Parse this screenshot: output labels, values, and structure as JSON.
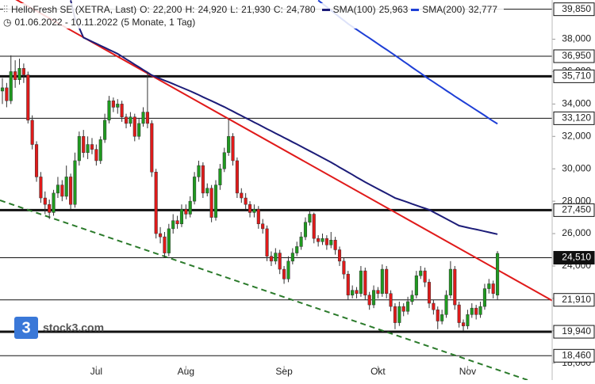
{
  "chart_data": {
    "type": "candlestick",
    "title": "HelloFresh SE (XETRA, Last)",
    "quote": [
      {
        "key": "O:",
        "value": "22,200"
      },
      {
        "key": "H:",
        "value": "24,920"
      },
      {
        "key": "L:",
        "value": "21,930"
      },
      {
        "key": "C:",
        "value": "24,780"
      }
    ],
    "period": "01.06.2022 - 10.11.2022",
    "span": "(5 Monate, 1 Tag)",
    "watermark": {
      "logo": "3",
      "text": "stock3.com"
    },
    "up_color": "#1f9a1f",
    "down_color": "#e01a1a",
    "ylim": [
      16960,
      40420
    ],
    "yticks": [
      {
        "value": 18000,
        "label": "18,000"
      },
      {
        "value": 20000,
        "label": "20,000"
      },
      {
        "value": 22000,
        "label": "22,000"
      },
      {
        "value": 24000,
        "label": "24,000"
      },
      {
        "value": 26000,
        "label": "26,000"
      },
      {
        "value": 28000,
        "label": "28,000"
      },
      {
        "value": 30000,
        "label": "30,000"
      },
      {
        "value": 32000,
        "label": "32,000"
      },
      {
        "value": 34000,
        "label": "34,000"
      },
      {
        "value": 36000,
        "label": "36,000"
      },
      {
        "value": 38000,
        "label": "38,000"
      }
    ],
    "levels": [
      {
        "value": 39850,
        "label": "39,850",
        "thick": false
      },
      {
        "value": 36950,
        "label": "36,950",
        "thick": false
      },
      {
        "value": 35710,
        "label": "35,710",
        "thick": true
      },
      {
        "value": 33120,
        "label": "33,120",
        "thick": false
      },
      {
        "value": 27450,
        "label": "27,450",
        "thick": true
      },
      {
        "value": 24510,
        "label": "24,510",
        "thick": false,
        "highlight": true
      },
      {
        "value": 21910,
        "label": "21,910",
        "thick": false
      },
      {
        "value": 19940,
        "label": "19,940",
        "thick": true
      },
      {
        "value": 18460,
        "label": "18,460",
        "thick": false
      }
    ],
    "categories": [
      null,
      null,
      null,
      null,
      null,
      null,
      null,
      null,
      null,
      null,
      null,
      null,
      null,
      null,
      null,
      null,
      null,
      null,
      null,
      null,
      null,
      null,
      "Jul",
      null,
      null,
      null,
      null,
      null,
      null,
      null,
      null,
      null,
      null,
      null,
      null,
      null,
      null,
      null,
      null,
      null,
      null,
      null,
      null,
      "Aug",
      null,
      null,
      null,
      null,
      null,
      null,
      null,
      null,
      null,
      null,
      null,
      null,
      null,
      null,
      null,
      null,
      null,
      null,
      null,
      null,
      null,
      null,
      "Sep",
      null,
      null,
      null,
      null,
      null,
      null,
      null,
      null,
      null,
      null,
      null,
      null,
      null,
      null,
      null,
      null,
      null,
      null,
      null,
      null,
      null,
      "Okt",
      null,
      null,
      null,
      null,
      null,
      null,
      null,
      null,
      null,
      null,
      null,
      null,
      null,
      null,
      null,
      null,
      null,
      null,
      null,
      null,
      "Nov",
      null,
      null,
      null,
      null,
      null,
      null,
      null
    ],
    "ohlc": [
      [
        34800,
        35600,
        34000,
        35000
      ],
      [
        35000,
        35300,
        33800,
        34200
      ],
      [
        34200,
        37000,
        34000,
        36000
      ],
      [
        36000,
        36700,
        35000,
        35500
      ],
      [
        35500,
        36800,
        35200,
        36200
      ],
      [
        36200,
        36500,
        35300,
        35800
      ],
      [
        35800,
        36000,
        32800,
        33000
      ],
      [
        33000,
        33300,
        31200,
        31500
      ],
      [
        31500,
        31700,
        29200,
        29500
      ],
      [
        29500,
        29800,
        27900,
        28200
      ],
      [
        28200,
        28600,
        27200,
        27800
      ],
      [
        27800,
        28100,
        26900,
        27300
      ],
      [
        27300,
        28700,
        27100,
        28500
      ],
      [
        28500,
        29500,
        28200,
        29000
      ],
      [
        29000,
        29300,
        28000,
        28300
      ],
      [
        28300,
        30200,
        28100,
        29500
      ],
      [
        29500,
        29700,
        27500,
        27800
      ],
      [
        27800,
        31000,
        27600,
        30500
      ],
      [
        30500,
        32300,
        30200,
        32000
      ],
      [
        32000,
        32400,
        30700,
        31000
      ],
      [
        31000,
        32000,
        30600,
        31500
      ],
      [
        31500,
        31900,
        30900,
        31200
      ],
      [
        31200,
        31500,
        30200,
        30500
      ],
      [
        30500,
        32000,
        30300,
        31800
      ],
      [
        31800,
        33400,
        31600,
        33000
      ],
      [
        33000,
        34500,
        32800,
        34200
      ],
      [
        34200,
        34400,
        33500,
        33800
      ],
      [
        33800,
        34300,
        33400,
        34000
      ],
      [
        34000,
        34200,
        32900,
        33200
      ],
      [
        33200,
        33400,
        32500,
        32800
      ],
      [
        32800,
        33500,
        32600,
        33200
      ],
      [
        33200,
        33400,
        31700,
        32000
      ],
      [
        32000,
        33100,
        31800,
        32800
      ],
      [
        32800,
        33800,
        32600,
        33500
      ],
      [
        33500,
        36000,
        32500,
        32800
      ],
      [
        32800,
        33000,
        29500,
        29800
      ],
      [
        29800,
        30000,
        25700,
        26000
      ],
      [
        26000,
        26400,
        25400,
        25800
      ],
      [
        25800,
        26100,
        24500,
        24800
      ],
      [
        24800,
        26600,
        24600,
        26300
      ],
      [
        26300,
        27200,
        26000,
        26800
      ],
      [
        26800,
        27100,
        26300,
        26600
      ],
      [
        26600,
        27800,
        26400,
        27500
      ],
      [
        27500,
        27800,
        26900,
        27200
      ],
      [
        27200,
        28300,
        27000,
        28000
      ],
      [
        28000,
        29800,
        27800,
        29500
      ],
      [
        29500,
        30500,
        29200,
        30200
      ],
      [
        30200,
        30400,
        28200,
        28500
      ],
      [
        28500,
        29100,
        28300,
        28800
      ],
      [
        28800,
        29000,
        26700,
        27000
      ],
      [
        27000,
        29300,
        26800,
        29000
      ],
      [
        29000,
        30300,
        28700,
        30000
      ],
      [
        30000,
        31300,
        29800,
        31000
      ],
      [
        31000,
        33100,
        30800,
        32000
      ],
      [
        32000,
        32200,
        30200,
        30500
      ],
      [
        30500,
        30700,
        28200,
        28500
      ],
      [
        28500,
        28800,
        27900,
        28200
      ],
      [
        28200,
        28500,
        27500,
        27800
      ],
      [
        27800,
        28000,
        27000,
        27300
      ],
      [
        27300,
        27800,
        27000,
        27500
      ],
      [
        27500,
        27700,
        26300,
        26600
      ],
      [
        26600,
        26900,
        26000,
        26300
      ],
      [
        26300,
        26500,
        24300,
        24600
      ],
      [
        24600,
        24900,
        24000,
        24300
      ],
      [
        24300,
        25100,
        24100,
        24800
      ],
      [
        24800,
        25000,
        23500,
        23800
      ],
      [
        23800,
        24000,
        22900,
        23200
      ],
      [
        23200,
        24600,
        23000,
        24300
      ],
      [
        24300,
        25100,
        24100,
        24800
      ],
      [
        24800,
        25500,
        24600,
        25200
      ],
      [
        25200,
        26100,
        25000,
        25800
      ],
      [
        25800,
        27000,
        25600,
        26700
      ],
      [
        26700,
        27450,
        26500,
        27200
      ],
      [
        27200,
        27300,
        25400,
        25700
      ],
      [
        25700,
        25900,
        25200,
        25500
      ],
      [
        25500,
        26000,
        25300,
        25700
      ],
      [
        25700,
        25900,
        25000,
        25300
      ],
      [
        25300,
        26100,
        25100,
        25600
      ],
      [
        25600,
        25800,
        24700,
        25000
      ],
      [
        25000,
        25200,
        24000,
        24300
      ],
      [
        24300,
        24500,
        23200,
        23500
      ],
      [
        23500,
        23700,
        21900,
        22200
      ],
      [
        22200,
        22800,
        22000,
        22500
      ],
      [
        22500,
        22700,
        22000,
        22300
      ],
      [
        22300,
        24000,
        22100,
        23700
      ],
      [
        23700,
        23900,
        21900,
        22200
      ],
      [
        22200,
        22400,
        21300,
        21600
      ],
      [
        21600,
        22800,
        21400,
        22500
      ],
      [
        22500,
        22700,
        22000,
        22300
      ],
      [
        22300,
        24100,
        22100,
        23800
      ],
      [
        23800,
        24000,
        22000,
        22300
      ],
      [
        22300,
        22500,
        21200,
        21500
      ],
      [
        21500,
        21700,
        20100,
        20500
      ],
      [
        20500,
        21800,
        20300,
        21500
      ],
      [
        21500,
        21700,
        20900,
        21200
      ],
      [
        21200,
        22100,
        21000,
        21800
      ],
      [
        21800,
        22500,
        21600,
        22200
      ],
      [
        22200,
        23700,
        22000,
        23400
      ],
      [
        23400,
        24000,
        23200,
        23700
      ],
      [
        23700,
        23900,
        22700,
        23000
      ],
      [
        23000,
        23200,
        21400,
        21700
      ],
      [
        21700,
        21900,
        21000,
        21300
      ],
      [
        21300,
        21500,
        20100,
        20600
      ],
      [
        20600,
        21300,
        20400,
        21000
      ],
      [
        21000,
        22500,
        20800,
        22200
      ],
      [
        22200,
        24300,
        22000,
        23800
      ],
      [
        23800,
        24000,
        21300,
        21600
      ],
      [
        21600,
        21800,
        20200,
        20500
      ],
      [
        20500,
        20700,
        20000,
        20300
      ],
      [
        20300,
        21300,
        20100,
        21000
      ],
      [
        21000,
        21700,
        20800,
        21400
      ],
      [
        21400,
        21600,
        20700,
        21000
      ],
      [
        21000,
        21800,
        20800,
        21500
      ],
      [
        21500,
        22900,
        21300,
        22600
      ],
      [
        22600,
        23200,
        22300,
        22900
      ],
      [
        22900,
        23100,
        22000,
        22300
      ],
      [
        22200,
        24920,
        21930,
        24780
      ]
    ],
    "series": [
      {
        "name": "SMA(100)",
        "color": "#1c1c78",
        "last_label": "25,963",
        "values": [
          null,
          null,
          null,
          null,
          null,
          null,
          null,
          null,
          null,
          null,
          null,
          null,
          null,
          null,
          null,
          null,
          40400,
          39300,
          38700,
          38100,
          37980,
          37850,
          37730,
          37600,
          37480,
          37350,
          37230,
          37100,
          36940,
          36770,
          36610,
          36440,
          36280,
          36110,
          35950,
          35780,
          35670,
          35560,
          35450,
          35350,
          35240,
          35130,
          35020,
          34910,
          34800,
          34680,
          34560,
          34430,
          34310,
          34190,
          34070,
          33940,
          33820,
          33680,
          33550,
          33410,
          33280,
          33140,
          33010,
          32870,
          32740,
          32600,
          32460,
          32330,
          32190,
          32060,
          31920,
          31790,
          31650,
          31520,
          31380,
          31240,
          31100,
          30960,
          30820,
          30680,
          30540,
          30400,
          30250,
          30090,
          29940,
          29790,
          29640,
          29480,
          29330,
          29180,
          29040,
          28900,
          28760,
          28620,
          28480,
          28340,
          28200,
          28110,
          28020,
          27930,
          27830,
          27740,
          27650,
          27560,
          27470,
          27330,
          27190,
          27050,
          26910,
          26770,
          26630,
          26490,
          26430,
          26370,
          26310,
          26260,
          26200,
          26140,
          26080,
          26020,
          25963
        ]
      },
      {
        "name": "SMA(200)",
        "color": "#1e3fd6",
        "last_label": "32,777",
        "values": [
          null,
          null,
          null,
          null,
          null,
          null,
          null,
          null,
          null,
          null,
          null,
          null,
          null,
          null,
          null,
          null,
          null,
          null,
          null,
          null,
          null,
          null,
          null,
          null,
          null,
          null,
          null,
          null,
          null,
          null,
          null,
          null,
          null,
          null,
          null,
          null,
          null,
          null,
          null,
          null,
          null,
          null,
          null,
          null,
          null,
          null,
          null,
          null,
          null,
          null,
          null,
          null,
          null,
          null,
          null,
          null,
          null,
          null,
          null,
          null,
          null,
          null,
          null,
          null,
          null,
          null,
          null,
          null,
          null,
          null,
          null,
          null,
          null,
          null,
          40400,
          40190,
          39990,
          39780,
          39570,
          39360,
          39160,
          38950,
          38770,
          38600,
          38420,
          38240,
          38070,
          37890,
          37710,
          37530,
          37360,
          37180,
          37000,
          36820,
          36630,
          36450,
          36260,
          36080,
          35900,
          35710,
          35530,
          35360,
          35180,
          35010,
          34830,
          34660,
          34480,
          34310,
          34140,
          33970,
          33800,
          33630,
          33460,
          33290,
          33110,
          32940,
          32777
        ]
      }
    ]
  }
}
